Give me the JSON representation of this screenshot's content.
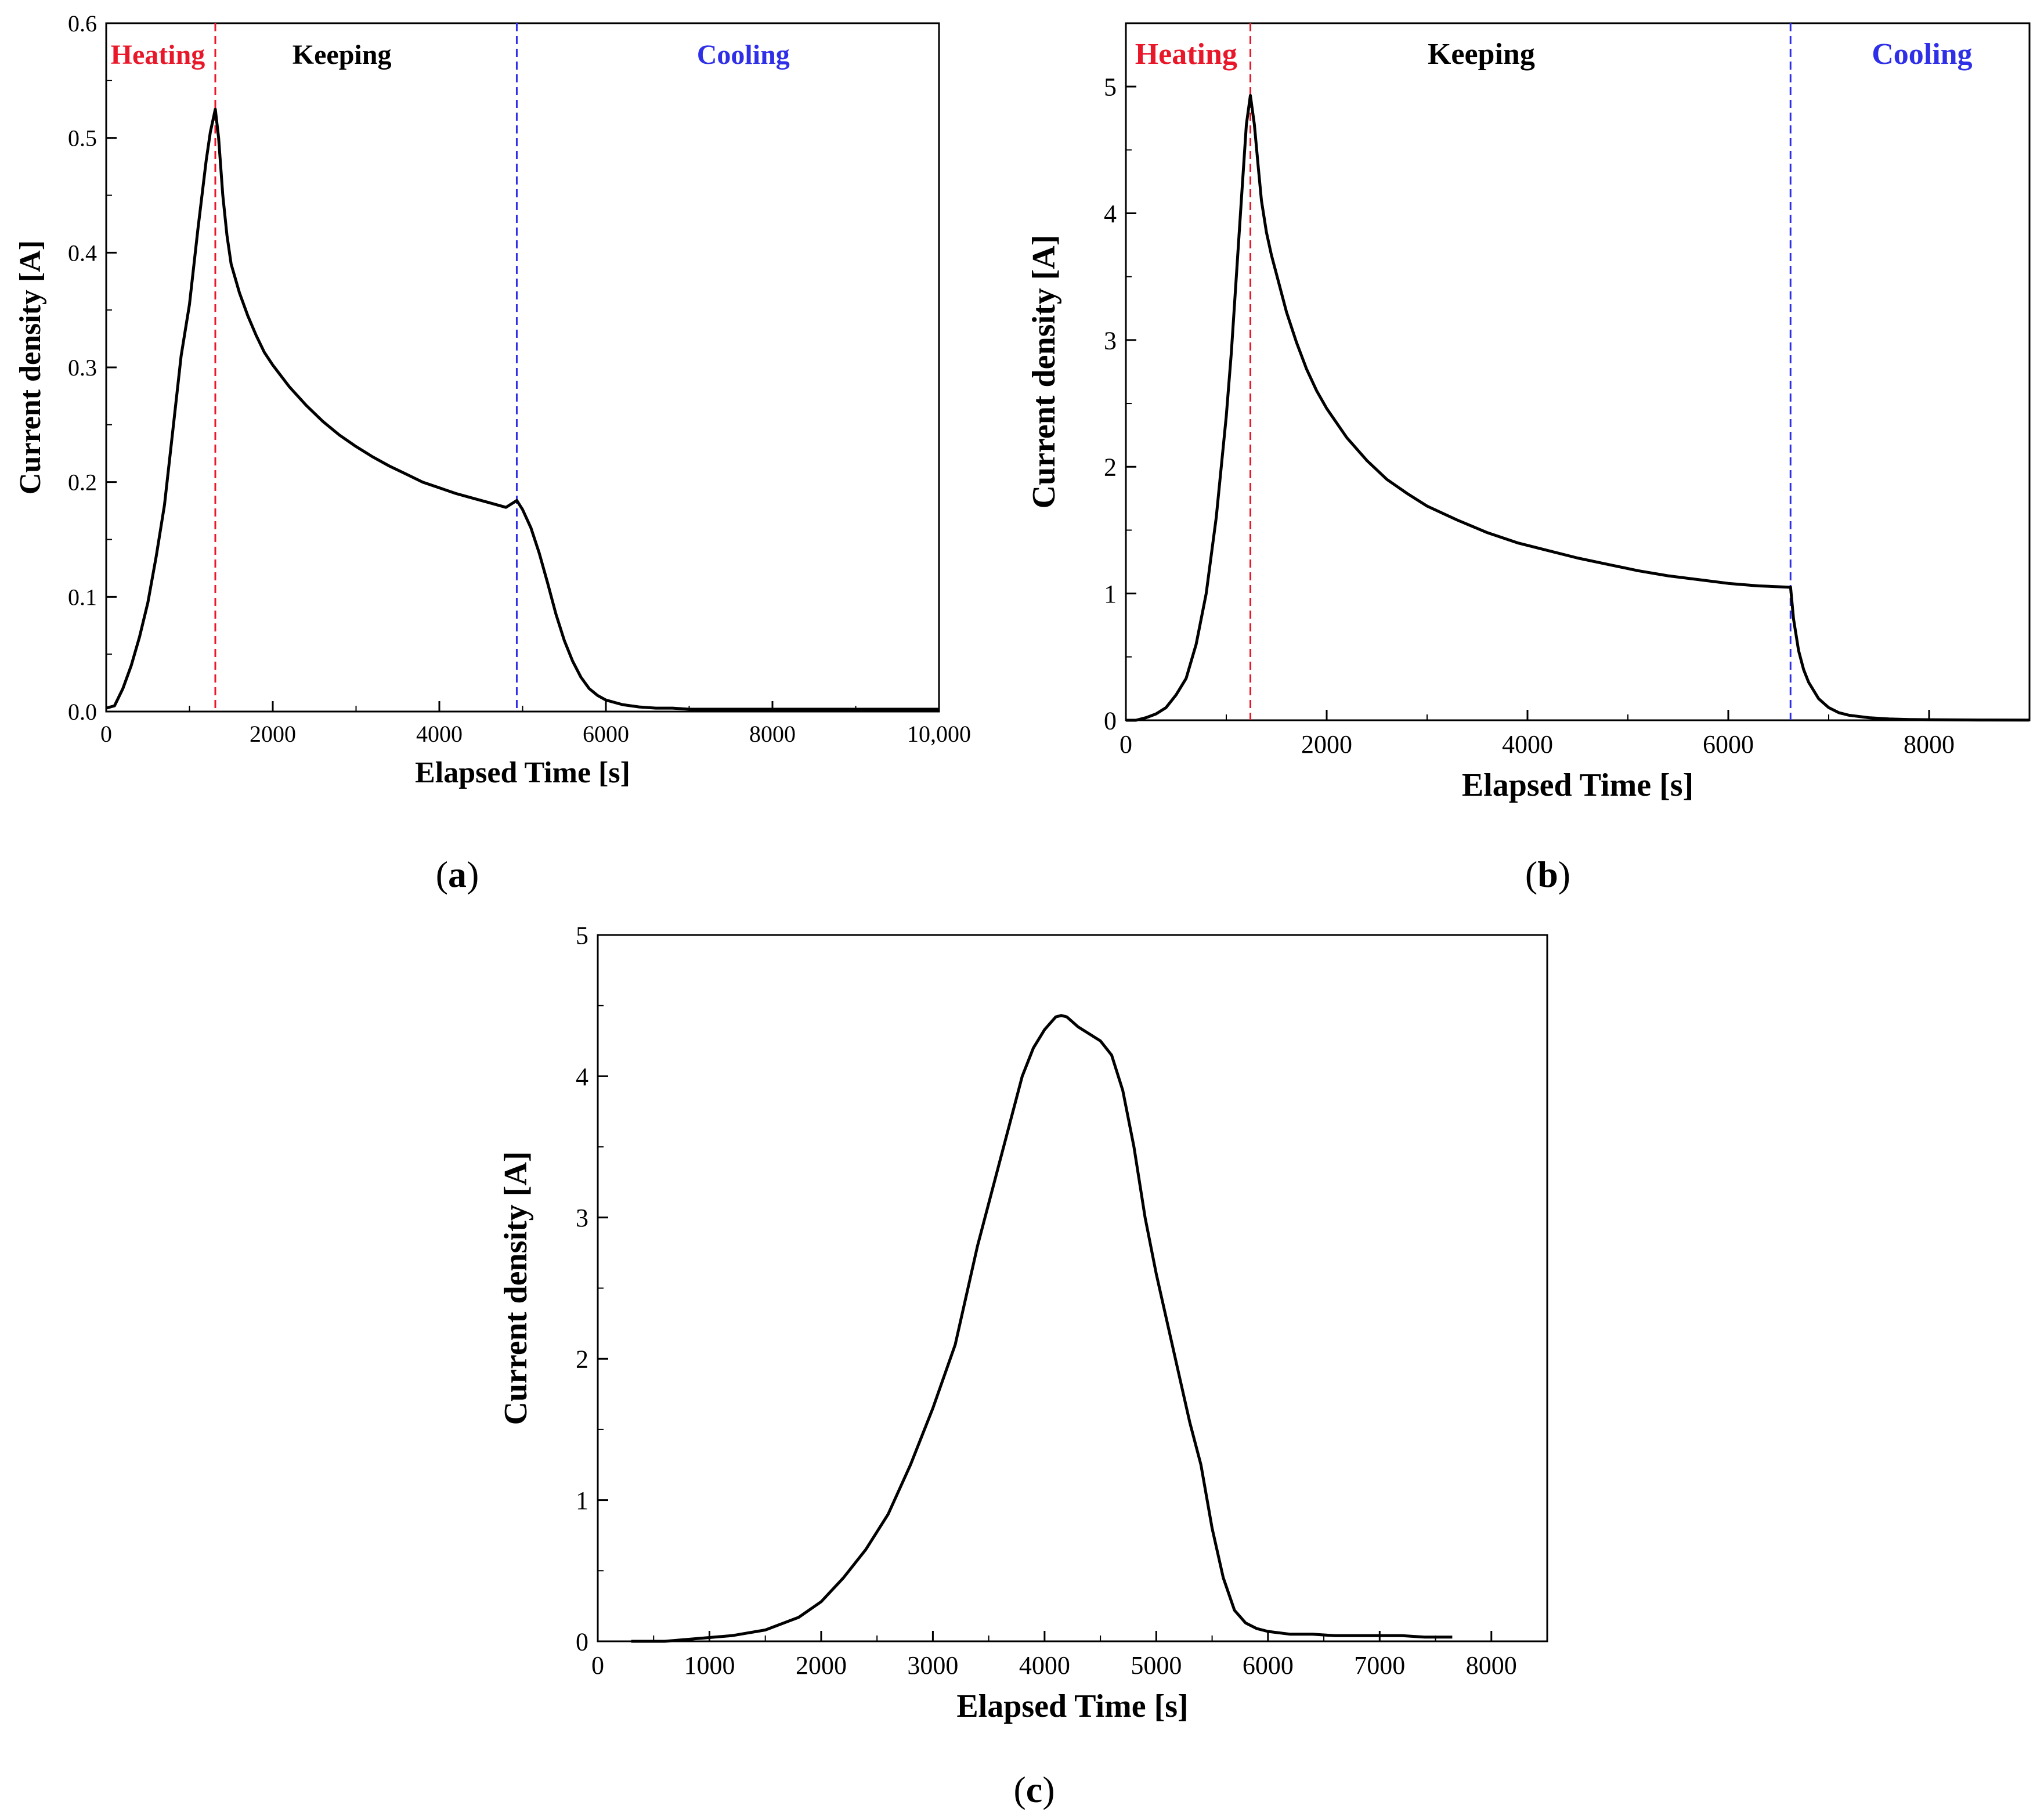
{
  "chart_data": [
    {
      "id": "a",
      "type": "line",
      "panel_label": "a",
      "xlabel": "Elapsed Time [s]",
      "ylabel": "Current density [A]",
      "xlim": [
        0,
        10000
      ],
      "ylim": [
        0,
        0.6
      ],
      "xticks": [
        0,
        2000,
        4000,
        6000,
        8000,
        10000
      ],
      "xtick_labels": [
        "0",
        "2000",
        "4000",
        "6000",
        "8000",
        "10,000"
      ],
      "yticks": [
        0,
        0.1,
        0.2,
        0.3,
        0.4,
        0.5,
        0.6
      ],
      "ytick_labels": [
        "0.0",
        "0.1",
        "0.2",
        "0.3",
        "0.4",
        "0.5",
        "0.6"
      ],
      "phase_lines": [
        {
          "x": 1310,
          "color": "#e8182a"
        },
        {
          "x": 4930,
          "color": "#2f2fe8"
        }
      ],
      "phase_labels": [
        {
          "text": "Heating",
          "x": 620,
          "color": "#e8182a"
        },
        {
          "text": "Keeping",
          "x": 2830,
          "color": "#000000"
        },
        {
          "text": "Cooling",
          "x": 7650,
          "color": "#2f2fe8"
        }
      ],
      "series": [
        {
          "name": "current",
          "x": [
            0,
            100,
            200,
            300,
            400,
            500,
            600,
            700,
            800,
            900,
            1000,
            1100,
            1200,
            1250,
            1310,
            1350,
            1400,
            1450,
            1500,
            1600,
            1700,
            1800,
            1900,
            2000,
            2200,
            2400,
            2600,
            2800,
            3000,
            3200,
            3400,
            3600,
            3800,
            4000,
            4200,
            4400,
            4600,
            4800,
            4930,
            5000,
            5100,
            5200,
            5300,
            5400,
            5500,
            5600,
            5700,
            5800,
            5900,
            6000,
            6200,
            6400,
            6600,
            6800,
            7000,
            7500,
            8000,
            8500,
            9000,
            9500,
            10000
          ],
          "y": [
            0.003,
            0.005,
            0.02,
            0.04,
            0.065,
            0.095,
            0.135,
            0.18,
            0.245,
            0.31,
            0.355,
            0.42,
            0.48,
            0.505,
            0.525,
            0.5,
            0.45,
            0.415,
            0.39,
            0.365,
            0.345,
            0.328,
            0.313,
            0.302,
            0.283,
            0.267,
            0.253,
            0.241,
            0.231,
            0.222,
            0.214,
            0.207,
            0.2,
            0.195,
            0.19,
            0.186,
            0.182,
            0.178,
            0.184,
            0.176,
            0.16,
            0.138,
            0.112,
            0.085,
            0.062,
            0.044,
            0.03,
            0.02,
            0.014,
            0.01,
            0.006,
            0.004,
            0.003,
            0.003,
            0.002,
            0.002,
            0.002,
            0.002,
            0.002,
            0.002,
            0.002
          ]
        }
      ]
    },
    {
      "id": "b",
      "type": "line",
      "panel_label": "b",
      "xlabel": "Elapsed Time [s]",
      "ylabel": "Current density [A]",
      "xlim": [
        0,
        9000
      ],
      "ylim": [
        0,
        5.5
      ],
      "xticks": [
        0,
        2000,
        4000,
        6000,
        8000
      ],
      "xtick_labels": [
        "0",
        "2000",
        "4000",
        "6000",
        "8000"
      ],
      "yticks": [
        0,
        1,
        2,
        3,
        4,
        5
      ],
      "ytick_labels": [
        "0",
        "1",
        "2",
        "3",
        "4",
        "5"
      ],
      "phase_lines": [
        {
          "x": 1240,
          "color": "#e8182a"
        },
        {
          "x": 6620,
          "color": "#2f2fe8"
        }
      ],
      "phase_labels": [
        {
          "text": "Heating",
          "x": 600,
          "color": "#e8182a"
        },
        {
          "text": "Keeping",
          "x": 3540,
          "color": "#000000"
        },
        {
          "text": "Cooling",
          "x": 7930,
          "color": "#2f2fe8"
        }
      ],
      "series": [
        {
          "name": "current",
          "x": [
            0,
            100,
            200,
            300,
            400,
            500,
            600,
            700,
            800,
            900,
            1000,
            1050,
            1100,
            1150,
            1200,
            1240,
            1280,
            1320,
            1350,
            1400,
            1450,
            1500,
            1600,
            1700,
            1800,
            1900,
            2000,
            2200,
            2400,
            2600,
            2800,
            3000,
            3300,
            3600,
            3900,
            4200,
            4500,
            4800,
            5100,
            5400,
            5700,
            6000,
            6300,
            6600,
            6620,
            6650,
            6700,
            6750,
            6800,
            6900,
            7000,
            7100,
            7200,
            7400,
            7600,
            7800,
            8000,
            8500,
            9000
          ],
          "y": [
            0.0,
            0.0,
            0.02,
            0.05,
            0.1,
            0.2,
            0.33,
            0.6,
            1.0,
            1.6,
            2.4,
            2.9,
            3.5,
            4.1,
            4.7,
            4.93,
            4.7,
            4.35,
            4.1,
            3.85,
            3.67,
            3.52,
            3.22,
            2.98,
            2.77,
            2.6,
            2.46,
            2.23,
            2.05,
            1.9,
            1.79,
            1.69,
            1.58,
            1.48,
            1.4,
            1.34,
            1.28,
            1.23,
            1.18,
            1.14,
            1.11,
            1.08,
            1.06,
            1.05,
            1.05,
            0.8,
            0.55,
            0.4,
            0.3,
            0.17,
            0.1,
            0.06,
            0.04,
            0.02,
            0.01,
            0.006,
            0.004,
            0.002,
            0.001
          ]
        }
      ]
    },
    {
      "id": "c",
      "type": "line",
      "panel_label": "c",
      "xlabel": "Elapsed Time [s]",
      "ylabel": "Current density [A]",
      "xlim": [
        0,
        8500
      ],
      "ylim": [
        0,
        5
      ],
      "xticks": [
        0,
        1000,
        2000,
        3000,
        4000,
        5000,
        6000,
        7000,
        8000
      ],
      "xtick_labels": [
        "0",
        "1000",
        "2000",
        "3000",
        "4000",
        "5000",
        "6000",
        "7000",
        "8000"
      ],
      "yticks": [
        0,
        1,
        2,
        3,
        4,
        5
      ],
      "ytick_labels": [
        "0",
        "1",
        "2",
        "3",
        "4",
        "5"
      ],
      "phase_lines": [],
      "phase_labels": [],
      "series": [
        {
          "name": "current",
          "x": [
            300,
            600,
            900,
            1200,
            1500,
            1800,
            2000,
            2200,
            2400,
            2600,
            2800,
            3000,
            3200,
            3400,
            3600,
            3800,
            3900,
            4000,
            4100,
            4150,
            4200,
            4300,
            4400,
            4500,
            4600,
            4700,
            4800,
            4900,
            5000,
            5100,
            5200,
            5300,
            5400,
            5500,
            5600,
            5700,
            5800,
            5900,
            6000,
            6200,
            6400,
            6600,
            6800,
            7000,
            7200,
            7400,
            7650
          ],
          "y": [
            0.0,
            0.0,
            0.02,
            0.04,
            0.08,
            0.17,
            0.28,
            0.45,
            0.65,
            0.9,
            1.25,
            1.65,
            2.1,
            2.8,
            3.4,
            4.0,
            4.2,
            4.33,
            4.42,
            4.43,
            4.42,
            4.35,
            4.3,
            4.25,
            4.15,
            3.9,
            3.5,
            3.0,
            2.6,
            2.25,
            1.9,
            1.55,
            1.25,
            0.8,
            0.45,
            0.22,
            0.13,
            0.09,
            0.07,
            0.05,
            0.05,
            0.04,
            0.04,
            0.04,
            0.04,
            0.03,
            0.03
          ]
        }
      ]
    }
  ]
}
